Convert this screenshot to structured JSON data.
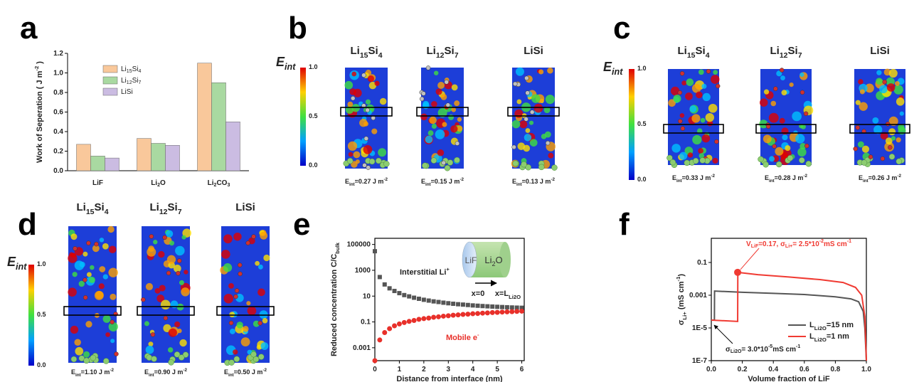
{
  "chart_data": [
    {
      "type": "bar",
      "label": "a",
      "ylabel": "Work of Seperation ( J m^{-2} )",
      "categories": [
        "LiF",
        "Li_{2}O",
        "Li_{2}CO_{3}"
      ],
      "series": [
        {
          "name": "Li_{15}Si_{4}",
          "color": "#f9c89b",
          "values": [
            0.27,
            0.33,
            1.1
          ]
        },
        {
          "name": "Li_{12}Si_{7}",
          "color": "#a9d9a1",
          "values": [
            0.15,
            0.28,
            0.9
          ]
        },
        {
          "name": "LiSi",
          "color": "#cbbce2",
          "values": [
            0.13,
            0.26,
            0.5
          ]
        }
      ],
      "ylim": [
        0,
        1.2
      ],
      "yticks": [
        {
          "value": 0,
          "label": "0.0"
        },
        0.2,
        0.4,
        0.6,
        0.8,
        {
          "value": 1,
          "label": "1.0"
        },
        1.2
      ],
      "legend": "upper left"
    },
    {
      "type": "scatter",
      "label": "e",
      "log_y": true,
      "ylabel": "Reduced concentration C/C_{bulk}",
      "xlabel": "Distance from interface (nm)",
      "x": [
        0,
        0.2,
        0.4,
        0.6,
        0.8,
        1.0,
        1.2,
        1.4,
        1.6,
        1.8,
        2.0,
        2.2,
        2.4,
        2.6,
        2.8,
        3.0,
        3.2,
        3.4,
        3.6,
        3.8,
        4.0,
        4.2,
        4.4,
        4.6,
        4.8,
        5.0,
        5.2,
        5.4,
        5.6,
        5.8,
        6.0
      ],
      "series": [
        {
          "name": "Interstitial Li^{+}",
          "color": "#555555",
          "marker": "square",
          "values": [
            30000,
            300,
            80,
            40,
            25,
            17,
            12,
            9.5,
            7.5,
            6.2,
            5.2,
            4.5,
            3.9,
            3.5,
            3.1,
            2.8,
            2.55,
            2.35,
            2.2,
            2.05,
            1.9,
            1.8,
            1.7,
            1.62,
            1.55,
            1.48,
            1.42,
            1.37,
            1.32,
            1.28,
            1.25
          ]
        },
        {
          "name": "Mobile e^{-}",
          "color": "#e8302a",
          "marker": "circle",
          "values": [
            0.0001,
            0.004,
            0.015,
            0.03,
            0.05,
            0.07,
            0.09,
            0.11,
            0.13,
            0.16,
            0.18,
            0.2,
            0.23,
            0.25,
            0.28,
            0.3,
            0.33,
            0.35,
            0.38,
            0.4,
            0.43,
            0.45,
            0.48,
            0.5,
            0.53,
            0.55,
            0.58,
            0.6,
            0.62,
            0.65,
            0.68
          ]
        }
      ],
      "xlim": [
        0,
        6.1
      ],
      "xticks": [
        0,
        1,
        2,
        3,
        4,
        5,
        6
      ],
      "ylim": [
        0.0001,
        300000
      ],
      "yticks": [
        0.001,
        0.1,
        10,
        1000,
        100000
      ],
      "inset": {
        "left": "LiF",
        "right": "Li_{2}O",
        "start": "x=0",
        "end": "x=L_{Li2O}"
      }
    },
    {
      "type": "line",
      "label": "f",
      "log_y": true,
      "ylabel": "σ_{Li+} (mS cm^{-1})",
      "xlabel": "Volume fraction of LiF",
      "series": [
        {
          "name": "L_{Li2O}=15 nm",
          "color": "#555555",
          "x": [
            0,
            0.02,
            0.021,
            0.2,
            0.4,
            0.6,
            0.8,
            0.9,
            0.95,
            0.98,
            0.99,
            1.0
          ],
          "values": [
            3e-05,
            3e-05,
            0.0018,
            0.0015,
            0.0013,
            0.0011,
            0.0008,
            0.0006,
            0.0004,
            0.0001,
            1e-05,
            1e-07
          ]
        },
        {
          "name": "L_{Li2O}=1 nm",
          "color": "#f03a32",
          "x": [
            0,
            0.17,
            0.171,
            0.3,
            0.5,
            0.7,
            0.85,
            0.93,
            0.97,
            0.99,
            1.0
          ],
          "values": [
            3e-05,
            2.5e-05,
            0.025,
            0.018,
            0.013,
            0.009,
            0.006,
            0.003,
            0.001,
            5e-05,
            1e-07
          ]
        }
      ],
      "highlight": {
        "x": 0.17,
        "y": 0.025,
        "color": "#f03a32",
        "label": "V_{LiF}=0.17, σ_{Li+}= 2.5*10^{-2}mS cm^{-1}"
      },
      "note": "σ_{Li2O}= 3.0*10^{-5}mS cm^{-1}",
      "xlim": [
        0,
        1
      ],
      "xticks": [
        {
          "value": 0,
          "label": "0.0"
        },
        0.2,
        0.4,
        0.6,
        0.8,
        {
          "value": 1,
          "label": "1.0"
        }
      ],
      "ylim": [
        1e-07,
        3
      ],
      "yticks": [
        {
          "value": 1e-07,
          "label": "1E-7"
        },
        {
          "value": 1e-05,
          "label": "1E-5"
        },
        0.001,
        0.1
      ],
      "legend": "lower right"
    }
  ],
  "image_panels": [
    {
      "label": "b",
      "colorbar": {
        "title": "E_{int}",
        "ticks": [
          "1.0",
          "0.5",
          "0.0"
        ]
      },
      "structures": [
        {
          "title": "Li_{15}Si_{4}",
          "caption": "E_{int}=0.27 J m^{-2}"
        },
        {
          "title": "Li_{12}Si_{7}",
          "caption": "E_{int}=0.15 J m^{-2}"
        },
        {
          "title": "LiSi",
          "caption": "E_{int}=0.13 J m^{-2}"
        }
      ]
    },
    {
      "label": "c",
      "colorbar": {
        "title": "E_{int}",
        "ticks": [
          "1.0",
          "0.5",
          "0.0"
        ]
      },
      "structures": [
        {
          "title": "Li_{15}Si_{4}",
          "caption": "E_{int}=0.33 J m^{-2}"
        },
        {
          "title": "Li_{12}Si_{7}",
          "caption": "E_{int}=0.28 J m^{-2}"
        },
        {
          "title": "LiSi",
          "caption": "E_{int}=0.26 J m^{-2}"
        }
      ]
    },
    {
      "label": "d",
      "colorbar": {
        "title": "E_{int}",
        "ticks": [
          "1.0",
          "0.5",
          "0.0"
        ]
      },
      "structures": [
        {
          "title": "Li_{15}Si_{4}",
          "caption": "E_{int}=1.10 J m^{-2}"
        },
        {
          "title": "Li_{12}Si_{7}",
          "caption": "E_{int}=0.90 J m^{-2}"
        },
        {
          "title": "LiSi",
          "caption": "E_{int}=0.50 J m^{-2}"
        }
      ]
    }
  ]
}
